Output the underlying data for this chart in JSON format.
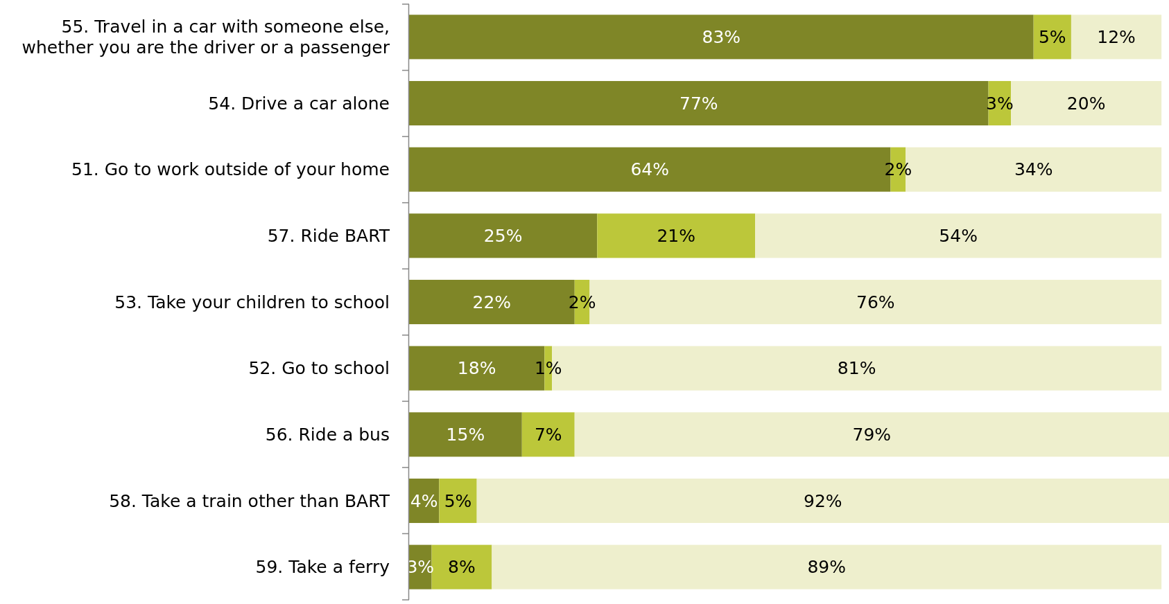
{
  "chart_data": {
    "type": "bar",
    "orientation": "horizontal",
    "stacked": true,
    "categories": [
      "55. Travel in a car with someone else, whether you are the driver or a passenger",
      "54. Drive a car alone",
      "51. Go to work outside of your home",
      "57. Ride BART",
      "53. Take your children to school",
      "52. Go to school",
      "56. Ride a bus",
      "58. Take a train other than BART",
      "59. Take a ferry"
    ],
    "series": [
      {
        "color": "#7f8627",
        "values": [
          83,
          77,
          64,
          25,
          22,
          18,
          15,
          4,
          3
        ],
        "value_labels": [
          "83%",
          "77%",
          "64%",
          "25%",
          "22%",
          "18%",
          "15%",
          "4%",
          "3%"
        ]
      },
      {
        "color": "#bcc73a",
        "values": [
          5,
          3,
          2,
          21,
          2,
          1,
          7,
          5,
          8
        ],
        "value_labels": [
          "5%",
          "3%",
          "2%",
          "21%",
          "2%",
          "1%",
          "7%",
          "5%",
          "8%"
        ]
      },
      {
        "color": "#eeefcd",
        "values": [
          12,
          20,
          34,
          54,
          76,
          81,
          79,
          92,
          89
        ],
        "value_labels": [
          "12%",
          "20%",
          "34%",
          "54%",
          "76%",
          "81%",
          "79%",
          "92%",
          "89%"
        ]
      }
    ]
  }
}
